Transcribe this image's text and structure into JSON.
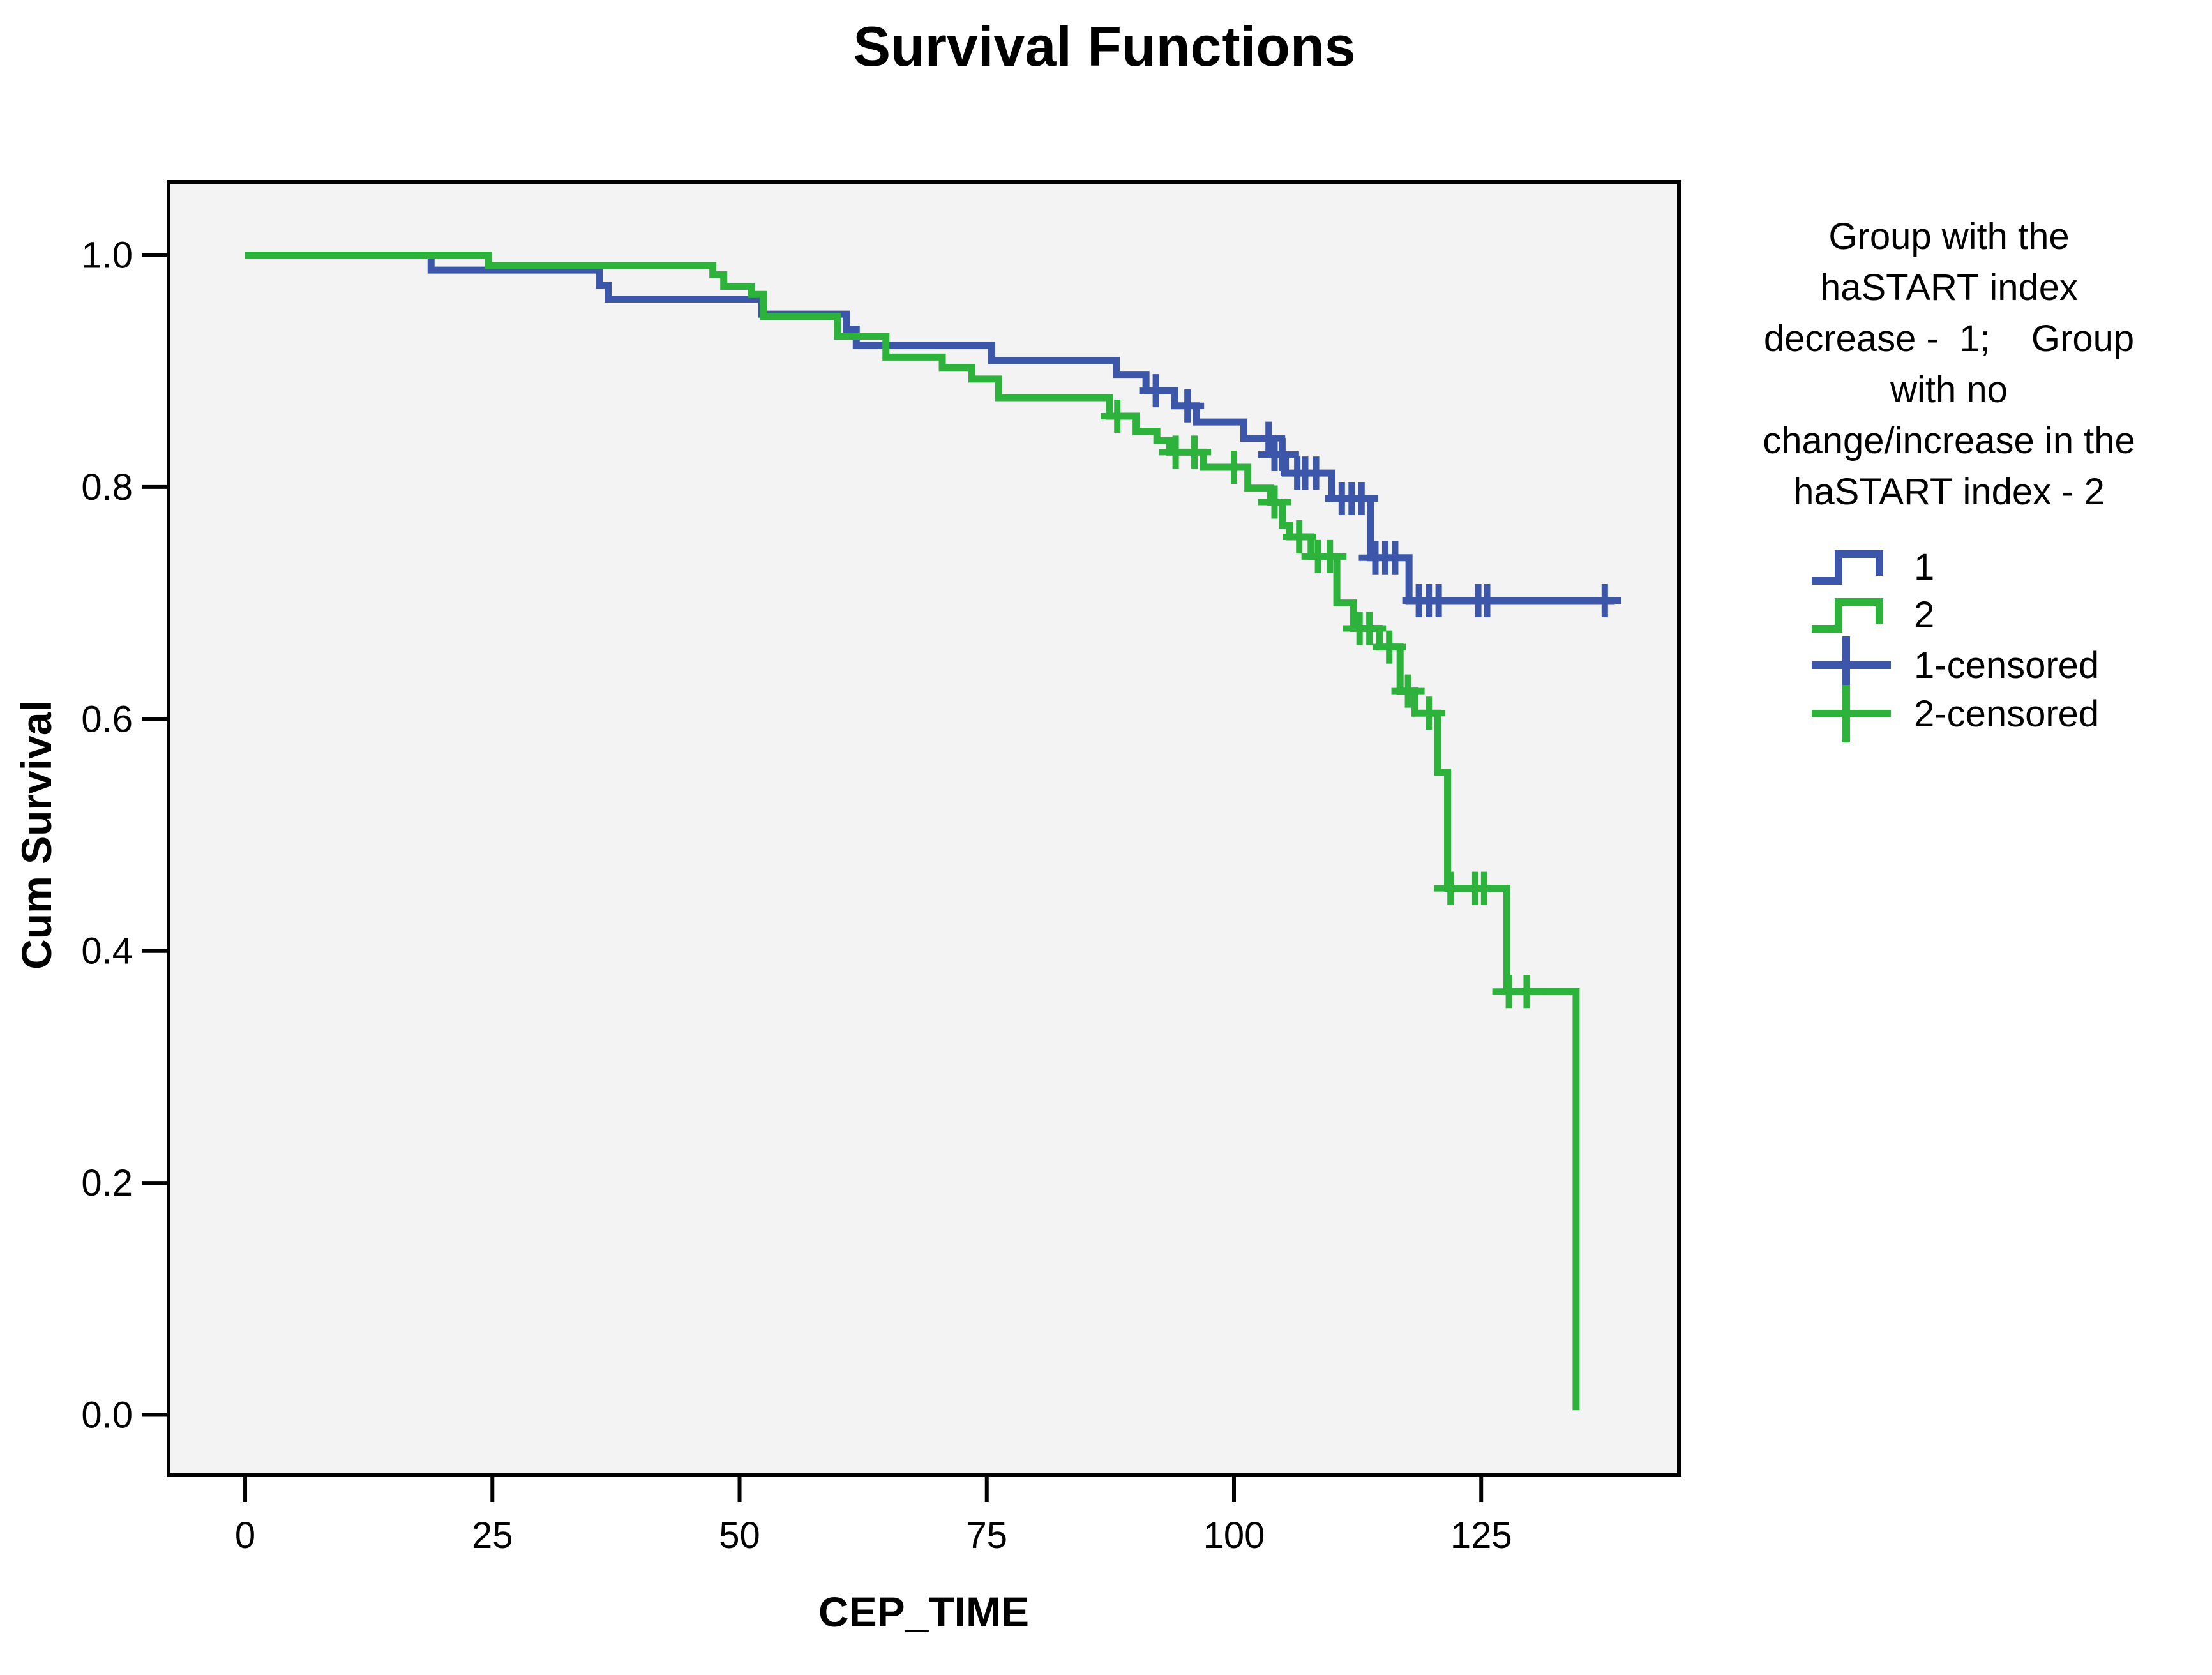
{
  "title": "Survival Functions",
  "axes": {
    "x_label": "CEP_TIME",
    "y_label": "Cum Survival",
    "x_ticks": [
      0,
      25,
      50,
      75,
      100,
      125
    ],
    "y_ticks": [
      "0.0",
      "0.2",
      "0.4",
      "0.6",
      "0.8",
      "1.0"
    ]
  },
  "legend": {
    "title_lines": [
      "Group with the",
      "haSTART index",
      "decrease -  1;    Group",
      "with no",
      "change/increase in the",
      "haSTART index - 2"
    ],
    "items": [
      {
        "label": "1",
        "symbol": "step",
        "color": "#3C56AA"
      },
      {
        "label": "2",
        "symbol": "step",
        "color": "#2DB23C"
      },
      {
        "label": "1-censored",
        "symbol": "plus",
        "color": "#3C56AA"
      },
      {
        "label": "2-censored",
        "symbol": "plus",
        "color": "#2DB23C"
      }
    ]
  },
  "colors": {
    "group1": "#3C56AA",
    "group2": "#2DB23C",
    "plot_background": "#F3F3F3",
    "frame": "#000000",
    "page_background": "#FFFFFF"
  },
  "chart_data": {
    "type": "line",
    "subtype": "kaplan-meier-step",
    "title": "Survival Functions",
    "xlabel": "CEP_TIME",
    "ylabel": "Cum Survival",
    "xlim": [
      -7.75,
      145.0
    ],
    "ylim": [
      -0.052,
      1.063
    ],
    "grid": false,
    "legend_position": "right",
    "series": [
      {
        "name": "1",
        "color": "#3C56AA",
        "end_t": 138.5,
        "points": [
          [
            0,
            1.0
          ],
          [
            18.8,
            0.987
          ],
          [
            35.8,
            0.974
          ],
          [
            36.7,
            0.962
          ],
          [
            52.2,
            0.949
          ],
          [
            60.8,
            0.936
          ],
          [
            61.8,
            0.922
          ],
          [
            75.5,
            0.909
          ],
          [
            88.1,
            0.897
          ],
          [
            91.1,
            0.883
          ],
          [
            94.0,
            0.87
          ],
          [
            96.2,
            0.856
          ],
          [
            101.0,
            0.842
          ],
          [
            103.9,
            0.828
          ],
          [
            105.2,
            0.812
          ],
          [
            109.9,
            0.79
          ],
          [
            113.8,
            0.739
          ],
          [
            117.7,
            0.702
          ]
        ],
        "censored": [
          [
            92.1,
            0.883
          ],
          [
            95.3,
            0.87
          ],
          [
            103.5,
            0.842
          ],
          [
            104.1,
            0.828
          ],
          [
            104.9,
            0.828
          ],
          [
            106.4,
            0.812
          ],
          [
            107.2,
            0.812
          ],
          [
            108.3,
            0.812
          ],
          [
            110.9,
            0.79
          ],
          [
            111.9,
            0.79
          ],
          [
            112.9,
            0.79
          ],
          [
            114.3,
            0.739
          ],
          [
            115.3,
            0.739
          ],
          [
            116.3,
            0.739
          ],
          [
            118.7,
            0.702
          ],
          [
            119.7,
            0.702
          ],
          [
            120.7,
            0.702
          ],
          [
            124.7,
            0.702
          ],
          [
            125.6,
            0.702
          ],
          [
            137.5,
            0.702
          ]
        ]
      },
      {
        "name": "2",
        "color": "#2DB23C",
        "end_t": 134.6,
        "points": [
          [
            0,
            1.0
          ],
          [
            24.6,
            0.991
          ],
          [
            47.3,
            0.983
          ],
          [
            48.4,
            0.973
          ],
          [
            51.2,
            0.966
          ],
          [
            52.4,
            0.947
          ],
          [
            59.9,
            0.93
          ],
          [
            64.8,
            0.912
          ],
          [
            70.5,
            0.903
          ],
          [
            73.5,
            0.893
          ],
          [
            76.2,
            0.877
          ],
          [
            87.4,
            0.861
          ],
          [
            90.1,
            0.848
          ],
          [
            92.2,
            0.84
          ],
          [
            93.5,
            0.83
          ],
          [
            96.9,
            0.817
          ],
          [
            101.4,
            0.799
          ],
          [
            103.7,
            0.787
          ],
          [
            104.9,
            0.767
          ],
          [
            105.6,
            0.757
          ],
          [
            107.8,
            0.74
          ],
          [
            110.4,
            0.7
          ],
          [
            112.1,
            0.678
          ],
          [
            114.7,
            0.662
          ],
          [
            116.8,
            0.624
          ],
          [
            118.3,
            0.605
          ],
          [
            120.6,
            0.554
          ],
          [
            121.6,
            0.454
          ],
          [
            127.6,
            0.365
          ],
          [
            134.6,
            0.004
          ]
        ],
        "censored": [
          [
            88.2,
            0.861
          ],
          [
            94.1,
            0.83
          ],
          [
            96.0,
            0.83
          ],
          [
            100.0,
            0.817
          ],
          [
            104.1,
            0.787
          ],
          [
            106.6,
            0.757
          ],
          [
            108.5,
            0.74
          ],
          [
            109.7,
            0.74
          ],
          [
            112.7,
            0.678
          ],
          [
            113.7,
            0.678
          ],
          [
            115.7,
            0.662
          ],
          [
            117.6,
            0.624
          ],
          [
            119.7,
            0.605
          ],
          [
            121.9,
            0.454
          ],
          [
            124.4,
            0.454
          ],
          [
            125.3,
            0.454
          ],
          [
            127.8,
            0.365
          ],
          [
            129.6,
            0.365
          ]
        ]
      }
    ]
  }
}
